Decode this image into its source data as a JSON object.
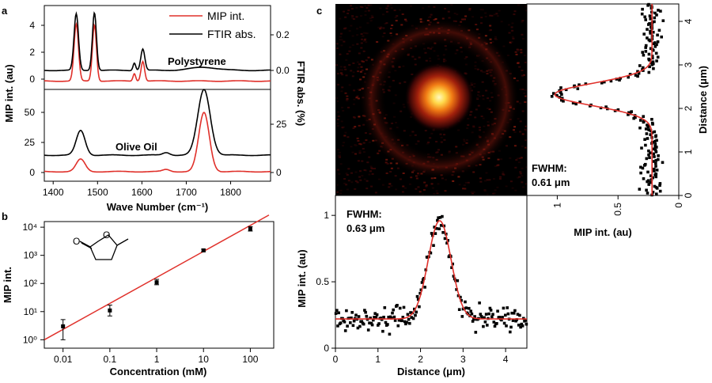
{
  "panel_labels": {
    "a": "a",
    "b": "b",
    "c": "c"
  },
  "colors": {
    "red": "#e0302a",
    "black": "#000000"
  },
  "chart_data": [
    {
      "id": "a_top",
      "type": "line",
      "title": "Polystyrene",
      "xlim": [
        1380,
        1890
      ],
      "ylim_left": [
        -0.5,
        5
      ],
      "left_ticks": [
        "0",
        "2",
        "4"
      ],
      "right_ticks": [
        "0.0",
        "0.2"
      ],
      "legend": [
        "MIP int.",
        "FTIR abs."
      ],
      "series": [
        {
          "name": "MIP int.",
          "color": "#e0302a",
          "base": 0.05,
          "peaks": [
            [
              1452,
              3.7,
              5
            ],
            [
              1493,
              3.7,
              4.5
            ],
            [
              1583,
              0.5,
              3
            ],
            [
              1602,
              1.3,
              4
            ]
          ]
        },
        {
          "name": "FTIR abs.",
          "color": "#000000",
          "base": 0.75,
          "peaks": [
            [
              1452,
              3.7,
              5
            ],
            [
              1493,
              3.8,
              4.5
            ],
            [
              1583,
              0.5,
              3
            ],
            [
              1602,
              1.4,
              4.5
            ],
            [
              1740,
              0.2,
              30
            ]
          ]
        }
      ]
    },
    {
      "id": "a_bottom",
      "type": "line",
      "title": "Olive Oil",
      "xlim": [
        1380,
        1890
      ],
      "ylim_left": [
        -5,
        62
      ],
      "left_ticks": [
        "0",
        "25",
        "50"
      ],
      "right_ticks": [
        "0",
        "25"
      ],
      "xlabel": "Wave Number (cm⁻¹)",
      "xticks": [
        "1400",
        "1500",
        "1600",
        "1700",
        "1800"
      ],
      "ylabel_left": "MIP int. (au)",
      "ylabel_right": "FTIR abs. (%)",
      "series": [
        {
          "name": "MIP int.",
          "color": "#e0302a",
          "base": 2,
          "peaks": [
            [
              1462,
              9,
              10
            ],
            [
              1740,
              43,
              12
            ],
            [
              1655,
              1.5,
              8
            ]
          ]
        },
        {
          "name": "FTIR abs.",
          "color": "#000000",
          "base": 14,
          "peaks": [
            [
              1462,
              18,
              10
            ],
            [
              1740,
              48,
              14
            ],
            [
              1655,
              2,
              8
            ]
          ]
        }
      ]
    },
    {
      "id": "b",
      "type": "scatter",
      "xlabel": "Concentration (mM)",
      "ylabel": "MIP int.",
      "xticks": [
        "0.01",
        "0.1",
        "1",
        "10",
        "100"
      ],
      "yticks": [
        "10⁰",
        "10¹",
        "10²",
        "10³",
        "10⁴"
      ],
      "xlim_log": [
        -2.4,
        2.5
      ],
      "ylim_log": [
        -0.3,
        4.2
      ],
      "points": [
        {
          "x": 0.01,
          "y": 3,
          "ylo": 1.0,
          "yhi": 5.2
        },
        {
          "x": 0.1,
          "y": 11,
          "ylo": 7,
          "yhi": 17
        },
        {
          "x": 1,
          "y": 110,
          "ylo": 90,
          "yhi": 140
        },
        {
          "x": 10,
          "y": 1500,
          "ylo": 1350,
          "yhi": 1650
        },
        {
          "x": 100,
          "y": 8800,
          "ylo": 7300,
          "yhi": 10500
        }
      ],
      "fit": {
        "x": [
          0.004,
          250
        ],
        "y": [
          1.0,
          27000
        ],
        "color": "#e0302a"
      }
    },
    {
      "id": "c_bottom",
      "type": "scatter",
      "annotation": "FWHM:",
      "annotation_value": "0.63 μm",
      "xlabel": "Distance (μm)",
      "ylabel": "MIP int. (au)",
      "xticks": [
        "0",
        "1",
        "2",
        "3",
        "4"
      ],
      "yticks": [
        "0",
        "0.5",
        "1"
      ],
      "xlim": [
        0,
        4.5
      ],
      "ylim": [
        0,
        1.15
      ],
      "fit": {
        "base": 0.22,
        "amp": 0.74,
        "center": 2.45,
        "fwhm": 0.63,
        "color": "#e0302a"
      },
      "noise": 0.06,
      "n_points": 200
    },
    {
      "id": "c_right",
      "type": "scatter",
      "annotation": "FWHM:",
      "annotation_value": "0.61 μm",
      "xlabel": "MIP int. (au)",
      "ylabel": "Distance (μm)",
      "xticks": [
        "1",
        "0.5",
        "0"
      ],
      "yticks": [
        "0",
        "1",
        "2",
        "3",
        "4"
      ],
      "xlim": [
        1.25,
        0
      ],
      "ylim": [
        0,
        4.4
      ],
      "fit": {
        "base": 0.22,
        "amp": 0.8,
        "center": 2.32,
        "fwhm": 0.61,
        "color": "#e0302a"
      },
      "noise": 0.06,
      "n_points": 200
    },
    {
      "id": "c_image",
      "type": "heatmap",
      "description_colors": [
        "#000000",
        "#5a0a0a",
        "#c02010",
        "#ff8a10",
        "#fff6a0"
      ]
    }
  ]
}
